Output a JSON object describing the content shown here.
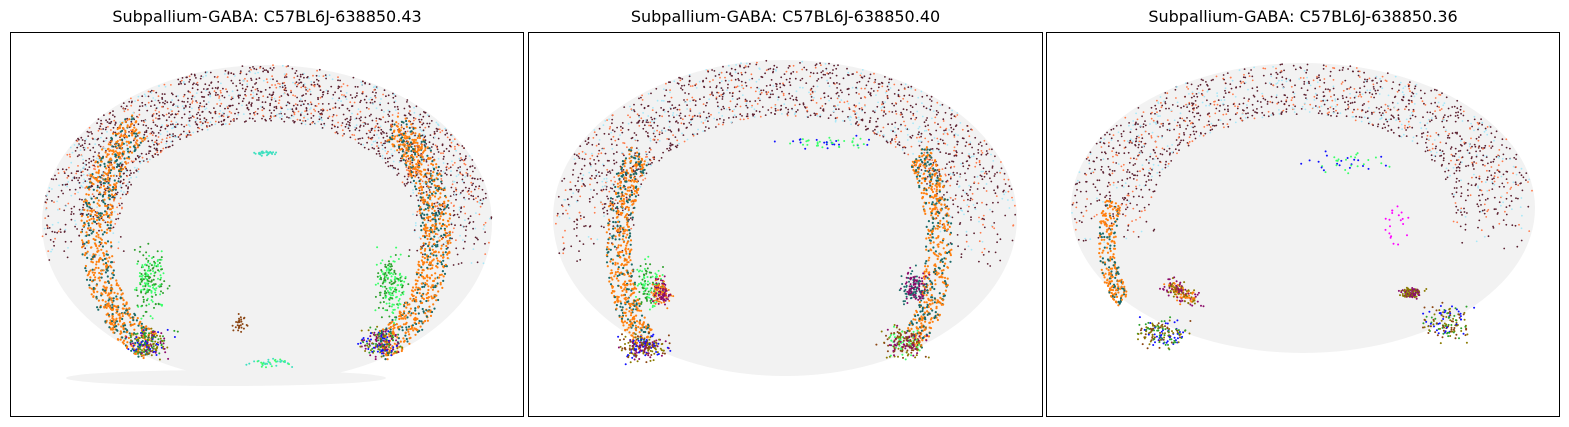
{
  "panels": [
    {
      "title": "Subpallium-GABA: C57BL6J-638850.43"
    },
    {
      "title": "Subpallium-GABA: C57BL6J-638850.40"
    },
    {
      "title": "Subpallium-GABA: C57BL6J-638850.36"
    }
  ],
  "colors": {
    "background_tissue": "#f2f2f2",
    "cortex_dark": "#5a1f2f",
    "cortex_orange": "#ff7a4a",
    "cortex_cyan": "#a8e8f8",
    "striatum_orange": "#ff7f0e",
    "striatum_teal": "#1a6a6a",
    "green": "#2ca02c",
    "lime": "#3cff6a",
    "purple": "#8b0a6a",
    "olive": "#8a7a00",
    "blue": "#1010ff",
    "aqua": "#40e0c0",
    "magenta": "#ff00ff",
    "brown": "#8b4513"
  }
}
